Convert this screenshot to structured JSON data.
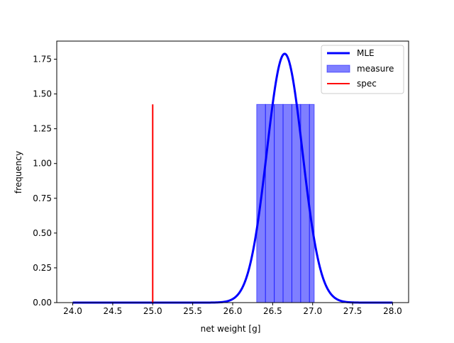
{
  "chart_data": {
    "type": "bar",
    "title": "",
    "xlabel": "net weight [g]",
    "ylabel": "frequency",
    "xlim": [
      23.8,
      28.2
    ],
    "ylim": [
      0,
      1.88
    ],
    "x_ticks": [
      24.0,
      24.5,
      25.0,
      25.5,
      26.0,
      26.5,
      27.0,
      27.5,
      28.0
    ],
    "x_tick_labels": [
      "24.0",
      "24.5",
      "25.0",
      "25.5",
      "26.0",
      "26.5",
      "27.0",
      "27.5",
      "28.0"
    ],
    "y_ticks": [
      0,
      0.25,
      0.5,
      0.75,
      1.0,
      1.25,
      1.5,
      1.75
    ],
    "y_tick_labels": [
      "0.00",
      "0.25",
      "0.50",
      "0.75",
      "1.00",
      "1.25",
      "1.50",
      "1.75"
    ],
    "grid": false,
    "legend_position": "top-right",
    "series": [
      {
        "name": "MLE",
        "kind": "line",
        "color": "#0000ff",
        "curve": "normal",
        "mean": 26.65,
        "std": 0.223,
        "x_range": [
          24.0,
          28.0
        ]
      },
      {
        "name": "measure",
        "kind": "histogram",
        "color": "#0000ff",
        "bins": [
          {
            "from": 26.3,
            "to": 26.41,
            "value": 1.425
          },
          {
            "from": 26.41,
            "to": 26.52,
            "value": 1.425
          },
          {
            "from": 26.52,
            "to": 26.63,
            "value": 1.425
          },
          {
            "from": 26.63,
            "to": 26.74,
            "value": 1.425
          },
          {
            "from": 26.74,
            "to": 26.85,
            "value": 1.425
          },
          {
            "from": 26.85,
            "to": 26.96,
            "value": 1.425
          },
          {
            "from": 26.96,
            "to": 27.02,
            "value": 1.425
          }
        ]
      },
      {
        "name": "spec",
        "kind": "vline",
        "color": "#ff0000",
        "x": 25.0,
        "y_range": [
          0,
          1.425
        ]
      }
    ]
  }
}
